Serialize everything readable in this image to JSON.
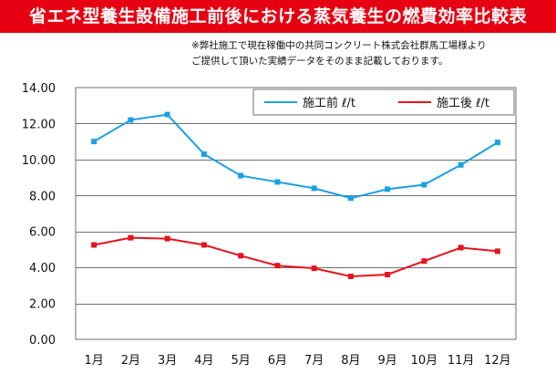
{
  "header": {
    "title": "省エネ型養生設備施工前後における蒸気養生の燃費効率比較表"
  },
  "note": {
    "line1": "※弊社施工で現在稼働中の共同コンクリート株式会社群馬工場様より",
    "line2": "ご提供して頂いた実績データをそのまま記載しております。"
  },
  "chart_data": {
    "type": "line",
    "title": "省エネ型養生設備施工前後における蒸気養生の燃費効率比較表",
    "xlabel": "",
    "ylabel": "",
    "categories": [
      "1月",
      "2月",
      "3月",
      "4月",
      "5月",
      "6月",
      "7月",
      "8月",
      "9月",
      "10月",
      "11月",
      "12月"
    ],
    "ylim": [
      0,
      14
    ],
    "yticks": [
      "0.00",
      "2.00",
      "4.00",
      "6.00",
      "8.00",
      "10.00",
      "12.00",
      "14.00"
    ],
    "grid": "horizontal",
    "legend_position": "top-right",
    "series": [
      {
        "name": "施工前 ℓ/t",
        "color": "#1ba1e2",
        "values": [
          11.0,
          12.2,
          12.5,
          10.3,
          9.1,
          8.75,
          8.4,
          7.85,
          8.35,
          8.6,
          9.7,
          10.95
        ]
      },
      {
        "name": "施工後 ℓ/t",
        "color": "#e5131d",
        "values": [
          5.25,
          5.65,
          5.6,
          5.25,
          4.65,
          4.1,
          3.95,
          3.5,
          3.6,
          4.35,
          5.1,
          4.9
        ]
      }
    ]
  }
}
